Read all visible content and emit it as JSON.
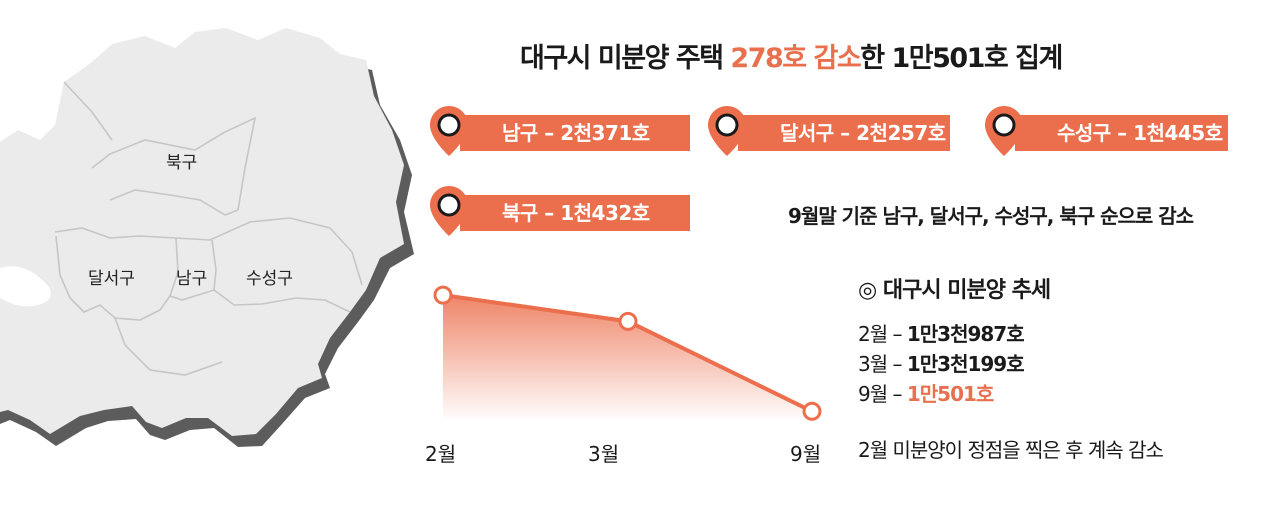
{
  "title": {
    "pre": "대구시 미분양 주택 ",
    "highlight": "278호 감소",
    "post": "한 1만501호 집계"
  },
  "map_labels": {
    "bukgu": "북구",
    "dalseogu": "달서구",
    "namgu": "남구",
    "suseonggu": "수성구"
  },
  "districts": [
    {
      "label": "남구 – 2천371호"
    },
    {
      "label": "달서구 – 2천257호"
    },
    {
      "label": "수성구 – 1천445호"
    },
    {
      "label": "북구 – 1천432호"
    }
  ],
  "district_note": "9월말 기준 남구, 달서구, 수성구, 북구 순으로 감소",
  "trend": {
    "title": "◎ 대구시 미분양 추세",
    "rows": [
      {
        "month": "2월 – ",
        "value": "1만3천987호"
      },
      {
        "month": "3월 – ",
        "value": "1만3천199호"
      },
      {
        "month": "9월 – ",
        "value": "1만501호"
      }
    ],
    "footer": "2월 미분양이 정점을 찍은 후 계속 감소"
  },
  "colors": {
    "accent": "#ec6f4d",
    "highlight_text": "#e8704f",
    "map_fill": "#ebebeb",
    "map_shadow": "#5c5c5c"
  },
  "chart_data": {
    "type": "area",
    "categories": [
      "2월",
      "3월",
      "9월"
    ],
    "values": [
      13987,
      13199,
      10501
    ],
    "ylim": [
      10000,
      14800
    ],
    "grid": false,
    "legend": "none",
    "title": "",
    "xlabel": "",
    "ylabel": ""
  }
}
